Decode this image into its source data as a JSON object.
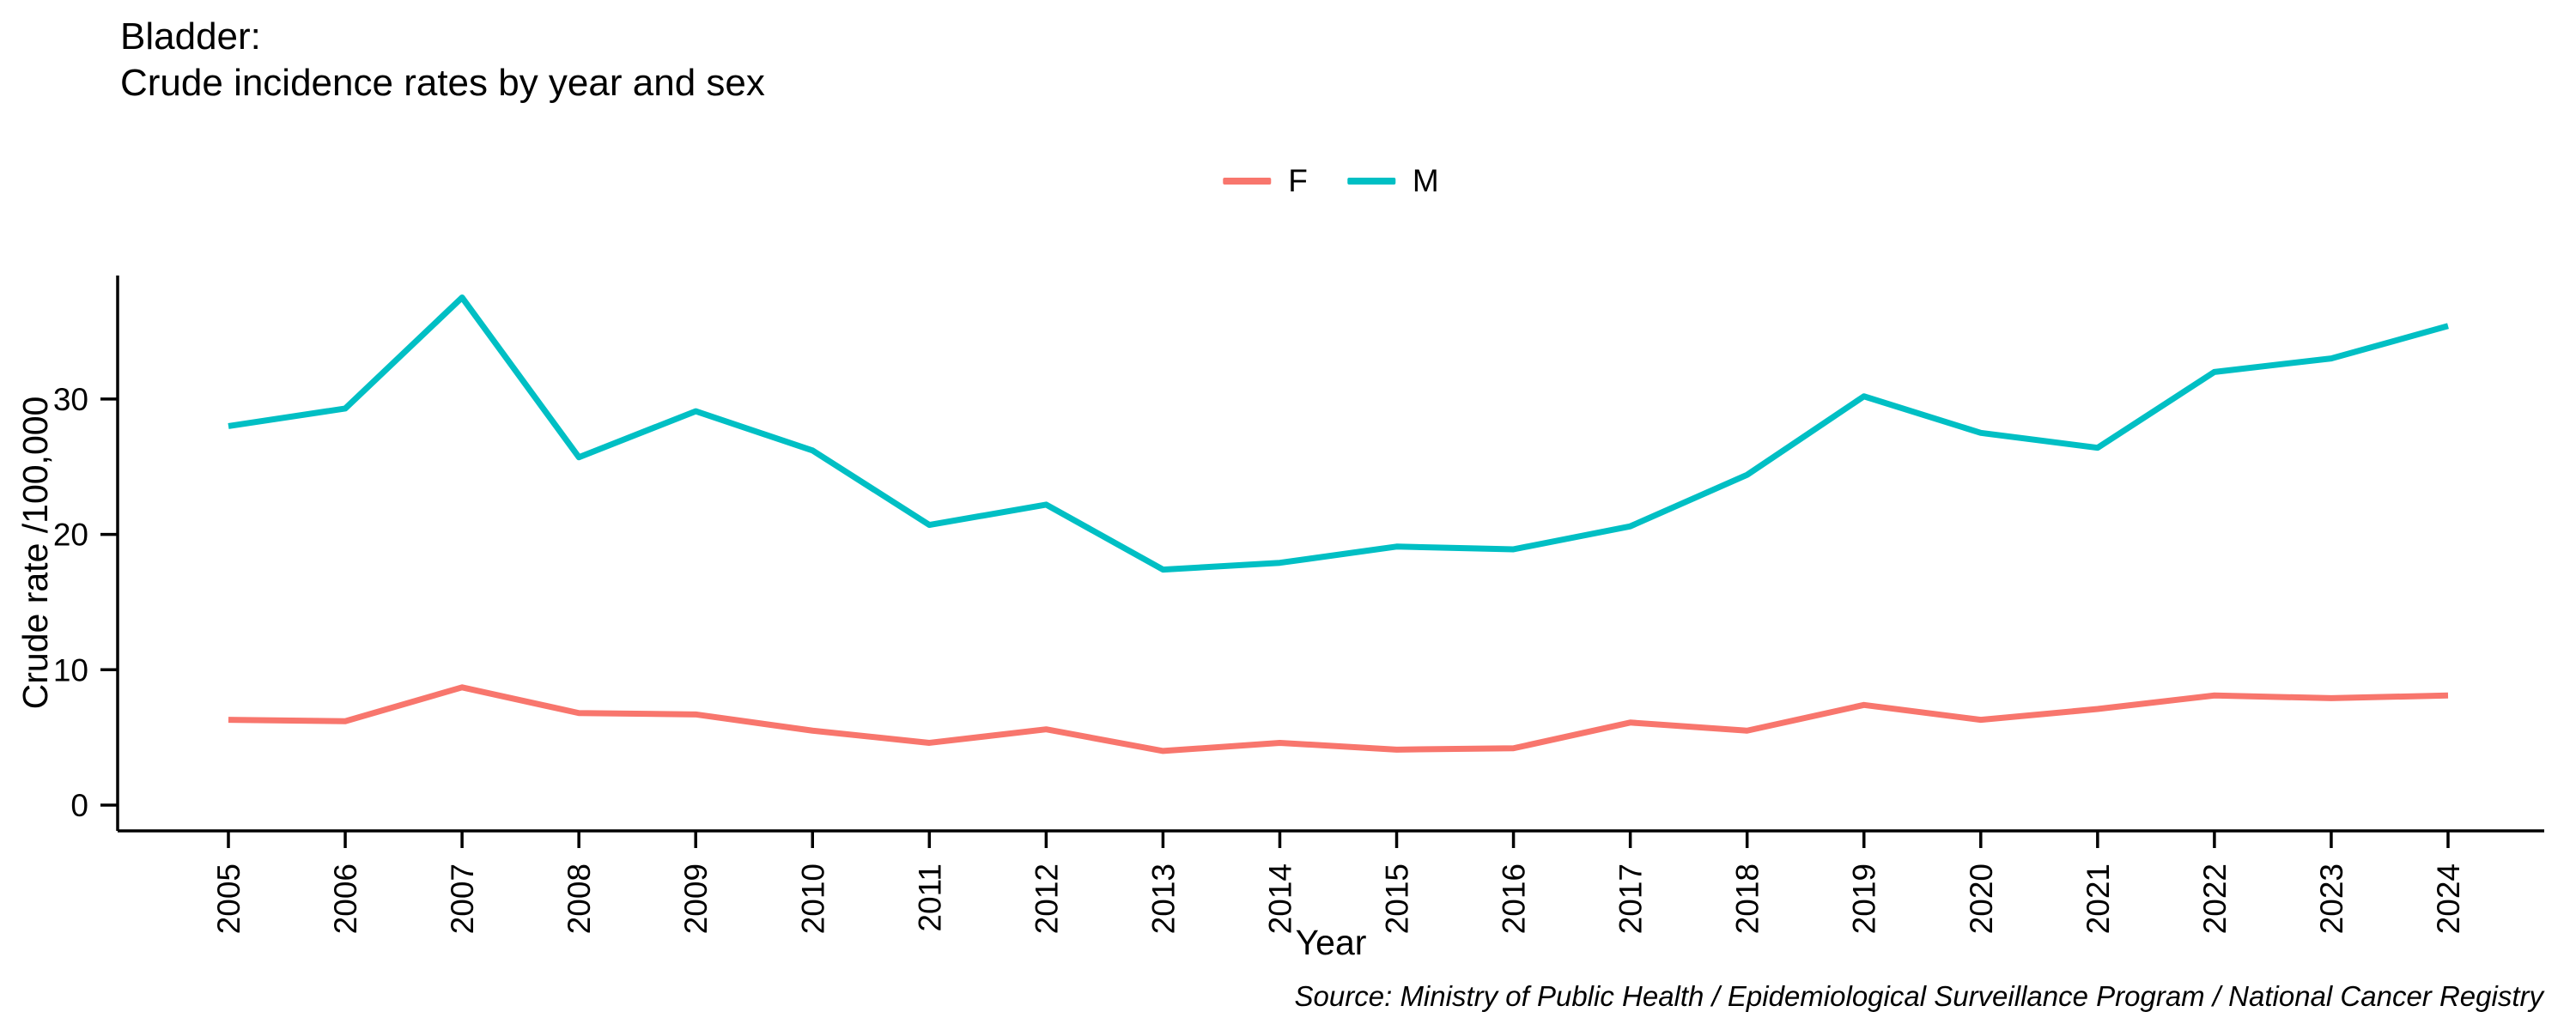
{
  "title_line1": "Bladder:",
  "title_line2": "Crude incidence rates by year and sex",
  "legend": {
    "items": [
      {
        "label": "F",
        "color": "#F8766D"
      },
      {
        "label": "M",
        "color": "#00BFC4"
      }
    ]
  },
  "chart_data": {
    "type": "line",
    "title": "Bladder: Crude incidence rates by year and sex",
    "xlabel": "Year",
    "ylabel": "Crude rate /100,000",
    "x": [
      "2005",
      "2006",
      "2007",
      "2008",
      "2009",
      "2010",
      "2011",
      "2012",
      "2013",
      "2014",
      "2015",
      "2016",
      "2017",
      "2018",
      "2019",
      "2020",
      "2021",
      "2022",
      "2023",
      "2024"
    ],
    "yticks": [
      0,
      10,
      20,
      30
    ],
    "ylim": [
      -1.9,
      39.3
    ],
    "grid": false,
    "legend_position": "top-center",
    "x_tick_rotation": 90,
    "series": [
      {
        "name": "F",
        "color": "#F8766D",
        "values": [
          6.3,
          6.2,
          8.7,
          6.8,
          6.7,
          5.5,
          4.6,
          5.6,
          4.0,
          4.6,
          4.1,
          4.2,
          6.1,
          5.5,
          7.4,
          6.3,
          7.1,
          8.1,
          7.9,
          8.1
        ]
      },
      {
        "name": "M",
        "color": "#00BFC4",
        "values": [
          28.0,
          29.3,
          37.5,
          25.7,
          29.1,
          26.2,
          20.7,
          22.2,
          17.4,
          17.9,
          19.1,
          18.9,
          20.6,
          24.4,
          30.2,
          27.5,
          26.4,
          32.0,
          33.0,
          35.4
        ]
      }
    ]
  },
  "source_note": "Source: Ministry of Public Health / Epidemiological Surveillance Program / National Cancer Registry"
}
